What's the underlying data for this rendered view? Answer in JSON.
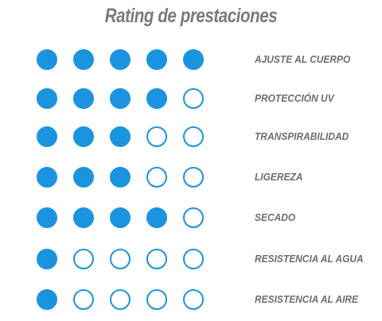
{
  "title": "Rating de prestaciones",
  "max_rating": 5,
  "colors": {
    "accent": "#1b94e0",
    "title": "#7a7a7a",
    "label": "#6e6e6e",
    "background": "#ffffff"
  },
  "ratings": [
    {
      "label": "AJUSTE AL CUERPO",
      "value": 5
    },
    {
      "label": "PROTECCIÓN UV",
      "value": 4
    },
    {
      "label": "TRANSPIRABILIDAD",
      "value": 3
    },
    {
      "label": "LIGEREZA",
      "value": 3
    },
    {
      "label": "SECADO",
      "value": 4
    },
    {
      "label": "RESISTENCIA AL AGUA",
      "value": 1
    },
    {
      "label": "RESISTENCIA AL AIRE",
      "value": 1
    }
  ]
}
